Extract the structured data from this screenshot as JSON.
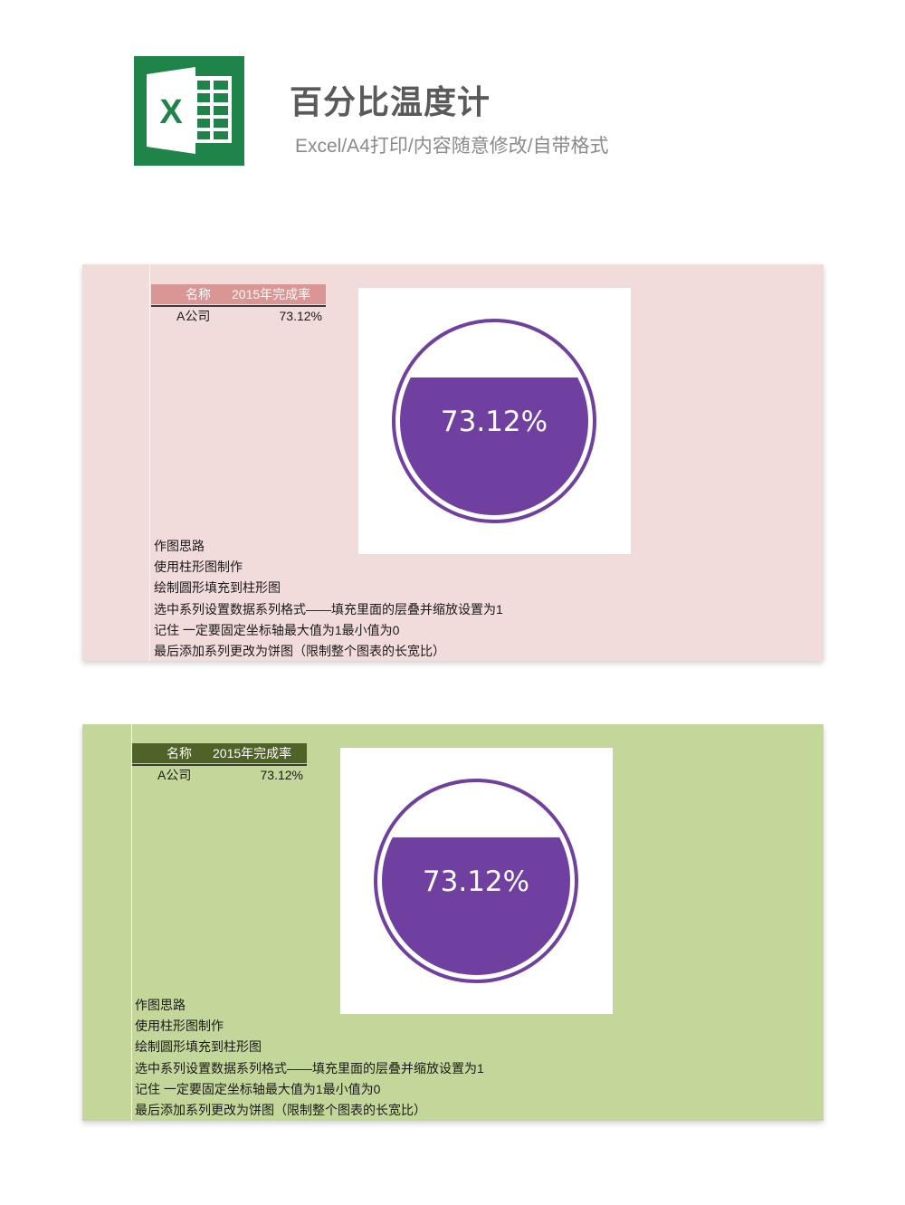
{
  "header": {
    "title": "百分比温度计",
    "subtitle": "Excel/A4打印/内容随意修改/自带格式",
    "logo_letter": "X",
    "logo_color": "#1e8449"
  },
  "panels": [
    {
      "id": "pink",
      "background": "#f2dbdb",
      "header_bg": "#d99694",
      "header_text_color": "#ffffff",
      "table": {
        "headers": [
          "名称",
          "2015年完成率"
        ],
        "rows": [
          {
            "name": "A公司",
            "value": "73.12%"
          }
        ]
      },
      "chart_data": {
        "type": "bar",
        "categories": [
          "A公司"
        ],
        "values": [
          0.7312
        ],
        "ylim": [
          0,
          1
        ],
        "data_label": "73.12%",
        "fill_color": "#7040a0"
      },
      "notes": [
        "作图思路",
        "使用柱形图制作",
        "绘制圆形填充到柱形图",
        "选中系列设置数据系列格式——填充里面的层叠并缩放设置为1",
        "记住  一定要固定坐标轴最大值为1最小值为0",
        "最后添加系列更改为饼图（限制整个图表的长宽比）"
      ]
    },
    {
      "id": "green",
      "background": "#c4d79b",
      "header_bg": "#4f6228",
      "header_text_color": "#ffffff",
      "table": {
        "headers": [
          "名称",
          "2015年完成率"
        ],
        "rows": [
          {
            "name": "A公司",
            "value": "73.12%"
          }
        ]
      },
      "chart_data": {
        "type": "bar",
        "categories": [
          "A公司"
        ],
        "values": [
          0.7312
        ],
        "ylim": [
          0,
          1
        ],
        "data_label": "73.12%",
        "fill_color": "#7040a0"
      },
      "notes": [
        "作图思路",
        "使用柱形图制作",
        "绘制圆形填充到柱形图",
        "选中系列设置数据系列格式——填充里面的层叠并缩放设置为1",
        "记住  一定要固定坐标轴最大值为1最小值为0",
        "最后添加系列更改为饼图（限制整个图表的长宽比）"
      ]
    }
  ]
}
